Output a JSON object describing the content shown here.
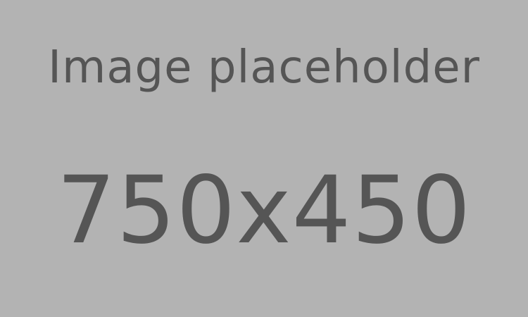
{
  "placeholder": {
    "caption": "Image placeholder",
    "dimensions": "750x450"
  },
  "colors": {
    "background": "#b3b3b3",
    "text": "#555555"
  }
}
